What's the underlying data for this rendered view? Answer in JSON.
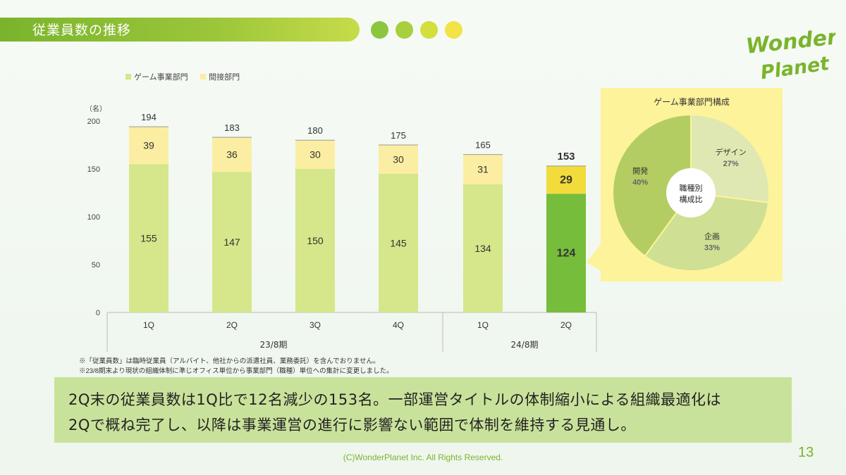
{
  "header": {
    "title": "従業員数の推移",
    "dot_colors": [
      "#8cc63f",
      "#a8d03e",
      "#d3df3c",
      "#f2e347"
    ]
  },
  "logo": {
    "line1": "Wonder",
    "line2": "Planet",
    "color": "#7ab42c"
  },
  "chart_data": [
    {
      "type": "bar",
      "stacked": true,
      "unit_label": "（名）",
      "ylim": [
        0,
        200
      ],
      "yticks": [
        0,
        50,
        100,
        150,
        200
      ],
      "categories": [
        "1Q",
        "2Q",
        "3Q",
        "4Q",
        "1Q",
        "2Q"
      ],
      "groups": [
        {
          "label": "23/8期",
          "categories": [
            "1Q",
            "2Q",
            "3Q",
            "4Q"
          ]
        },
        {
          "label": "24/8期",
          "categories": [
            "1Q",
            "2Q"
          ]
        }
      ],
      "series": [
        {
          "name": "ゲーム事業部門",
          "values": [
            155,
            147,
            150,
            145,
            134,
            124
          ],
          "color": "#d6e68a",
          "highlight_color": "#77bd3c"
        },
        {
          "name": "間接部門",
          "values": [
            39,
            36,
            30,
            30,
            31,
            29
          ],
          "color": "#fbeea2",
          "highlight_color": "#f2dc3b"
        }
      ],
      "totals": [
        194,
        183,
        180,
        175,
        165,
        153
      ],
      "highlight_index": 5,
      "legend_position": "top-left"
    },
    {
      "type": "pie",
      "title": "ゲーム事業部門構成",
      "center_label": [
        "職種別",
        "構成比"
      ],
      "slices": [
        {
          "label": "デザイン",
          "value": 27,
          "display": "27%",
          "color": "#dfe8b2"
        },
        {
          "label": "企画",
          "value": 33,
          "display": "33%",
          "color": "#cfdf94"
        },
        {
          "label": "開発",
          "value": 40,
          "display": "40%",
          "color": "#b3cd62"
        }
      ]
    }
  ],
  "footnotes": [
    "※「従業員数」は臨時従業員（アルバイト、他社からの派遣社員、業務委託）を含んでおりません。",
    "※23/8期末より現状の組織体制に準じオフィス単位から事業部門（職種）単位への集計に変更しました。"
  ],
  "summary": {
    "line1": "2Q末の従業員数は1Q比で12名減少の153名。一部運営タイトルの体制縮小による組織最適化は",
    "line2": "2Qで概ね完了し、以降は事業運営の進行に影響ない範囲で体制を維持する見通し。"
  },
  "footer": {
    "copyright": "(C)WonderPlanet Inc.  All Rights Reserved.",
    "page_number": "13"
  }
}
